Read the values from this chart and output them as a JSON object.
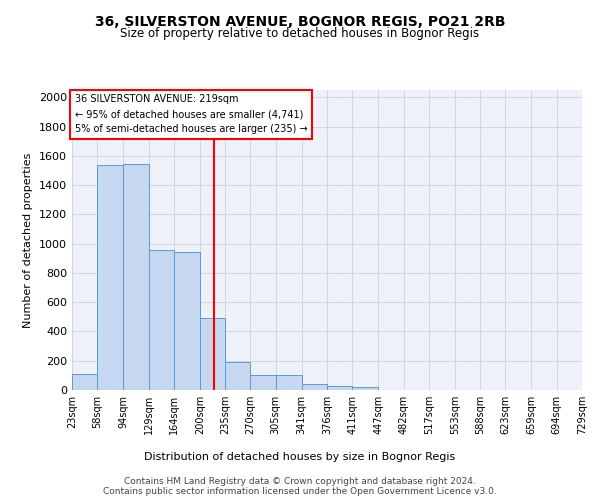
{
  "title1": "36, SILVERSTON AVENUE, BOGNOR REGIS, PO21 2RB",
  "title2": "Size of property relative to detached houses in Bognor Regis",
  "xlabel": "Distribution of detached houses by size in Bognor Regis",
  "ylabel": "Number of detached properties",
  "bin_labels": [
    "23sqm",
    "58sqm",
    "94sqm",
    "129sqm",
    "164sqm",
    "200sqm",
    "235sqm",
    "270sqm",
    "305sqm",
    "341sqm",
    "376sqm",
    "411sqm",
    "447sqm",
    "482sqm",
    "517sqm",
    "553sqm",
    "588sqm",
    "623sqm",
    "659sqm",
    "694sqm",
    "729sqm"
  ],
  "bar_values": [
    110,
    1540,
    1545,
    960,
    945,
    490,
    190,
    100,
    100,
    40,
    25,
    20,
    0,
    0,
    0,
    0,
    0,
    0,
    0,
    0,
    0
  ],
  "bar_color": "#c5d8f0",
  "bar_edge_color": "#5b9bd5",
  "vline_x": 219,
  "vline_color": "red",
  "annotation_title": "36 SILVERSTON AVENUE: 219sqm",
  "annotation_line1": "← 95% of detached houses are smaller (4,741)",
  "annotation_line2": "5% of semi-detached houses are larger (235) →",
  "annotation_box_color": "white",
  "annotation_box_edge": "red",
  "ylim": [
    0,
    2050
  ],
  "yticks": [
    0,
    200,
    400,
    600,
    800,
    1000,
    1200,
    1400,
    1600,
    1800,
    2000
  ],
  "grid_color": "#d0d8e8",
  "bg_color": "#eef2f8",
  "footer1": "Contains HM Land Registry data © Crown copyright and database right 2024.",
  "footer2": "Contains public sector information licensed under the Open Government Licence v3.0.",
  "bin_edges": [
    23,
    58,
    94,
    129,
    164,
    200,
    235,
    270,
    305,
    341,
    376,
    411,
    447,
    482,
    517,
    553,
    588,
    623,
    659,
    694,
    729
  ]
}
